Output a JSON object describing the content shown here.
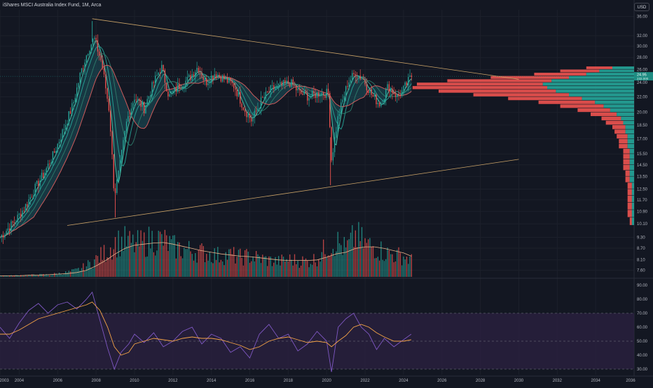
{
  "header": {
    "title": "iShares MSCI Australia Index Fund, 1M, Arca",
    "currency": "USD"
  },
  "colors": {
    "background": "#131722",
    "up": "#26a69a",
    "down": "#ef5350",
    "price_label": "#1e8c82",
    "trendline": "#c9a267",
    "rsi_line": "#7e57c2",
    "rsi_ma": "#f6a447",
    "rsi_band": "#2a2140",
    "volume_ma": "#e6b088",
    "grid": "#1c202b",
    "axis_text": "#b2b5be"
  },
  "price_labels": {
    "last": "24.95",
    "secondary": "232.000"
  },
  "chart_data": [
    {
      "type": "line",
      "title": "",
      "x_axis": {
        "tick_labels": [
          "2003",
          "2004",
          "2006",
          "2008",
          "2010",
          "2012",
          "2014",
          "2016",
          "2018",
          "2020",
          "2022",
          "2024",
          "2026",
          "2028",
          "2030",
          "2032",
          "2034",
          "2036"
        ],
        "tick_values": [
          2003,
          2004,
          2006,
          2008,
          2010,
          2012,
          2014,
          2016,
          2018,
          2020,
          2022,
          2024,
          2026,
          2028,
          2030,
          2032,
          2034,
          2036
        ],
        "range": [
          2003,
          2036
        ]
      },
      "y_axis": {
        "scale": "log",
        "tick_labels": [
          "36.00",
          "32.00",
          "30.00",
          "28.00",
          "26.00",
          "24.00",
          "22.00",
          "20.00",
          "18.50",
          "17.00",
          "15.50",
          "14.50",
          "13.50",
          "12.50",
          "11.70",
          "10.90",
          "10.10",
          "9.30",
          "8.70",
          "8.10",
          "7.60"
        ],
        "tick_values": [
          36,
          32,
          30,
          28,
          26,
          24,
          22,
          20,
          18.5,
          17,
          15.5,
          14.5,
          13.5,
          12.5,
          11.7,
          10.9,
          10.1,
          9.3,
          8.7,
          8.1,
          7.6
        ],
        "range": [
          7.3,
          37.5
        ]
      },
      "close_points": [
        [
          2003.0,
          9.3
        ],
        [
          2003.4,
          9.8
        ],
        [
          2003.8,
          10.3
        ],
        [
          2004.3,
          11.2
        ],
        [
          2004.8,
          12.5
        ],
        [
          2005.3,
          13.8
        ],
        [
          2005.8,
          15.5
        ],
        [
          2006.3,
          18.0
        ],
        [
          2006.8,
          21.0
        ],
        [
          2007.2,
          25.5
        ],
        [
          2007.6,
          29.5
        ],
        [
          2007.9,
          31.5
        ],
        [
          2008.3,
          27.0
        ],
        [
          2008.7,
          20.0
        ],
        [
          2008.95,
          12.0
        ],
        [
          2009.2,
          14.0
        ],
        [
          2009.6,
          19.0
        ],
        [
          2010.0,
          22.0
        ],
        [
          2010.5,
          20.5
        ],
        [
          2011.0,
          24.0
        ],
        [
          2011.4,
          26.5
        ],
        [
          2011.8,
          22.0
        ],
        [
          2012.3,
          23.5
        ],
        [
          2012.8,
          24.5
        ],
        [
          2013.3,
          26.5
        ],
        [
          2013.7,
          24.0
        ],
        [
          2014.2,
          25.5
        ],
        [
          2014.7,
          24.5
        ],
        [
          2015.2,
          23.5
        ],
        [
          2015.7,
          20.5
        ],
        [
          2016.1,
          19.0
        ],
        [
          2016.6,
          21.5
        ],
        [
          2017.1,
          23.0
        ],
        [
          2017.6,
          23.5
        ],
        [
          2018.1,
          24.0
        ],
        [
          2018.6,
          22.5
        ],
        [
          2019.1,
          22.0
        ],
        [
          2019.6,
          22.5
        ],
        [
          2020.1,
          22.5
        ],
        [
          2020.25,
          15.0
        ],
        [
          2020.6,
          19.5
        ],
        [
          2021.1,
          24.0
        ],
        [
          2021.5,
          25.5
        ],
        [
          2021.9,
          24.5
        ],
        [
          2022.4,
          22.0
        ],
        [
          2022.8,
          21.0
        ],
        [
          2023.2,
          23.5
        ],
        [
          2023.7,
          22.0
        ],
        [
          2024.0,
          23.0
        ],
        [
          2024.4,
          24.95
        ]
      ],
      "swing_high": [
        2007.8,
        35.0
      ],
      "swing_low_2009": [
        2009.0,
        10.5
      ],
      "swing_low_2020": [
        2020.2,
        12.8
      ],
      "trendlines": [
        {
          "from": [
            2007.8,
            35.5
          ],
          "to": [
            2030.0,
            24.5
          ]
        },
        {
          "from": [
            2006.5,
            10.0
          ],
          "to": [
            2030.0,
            15.0
          ]
        }
      ]
    },
    {
      "type": "bar",
      "title": "",
      "series_name": "",
      "x": [
        2003.0,
        2003.5,
        2004.0,
        2004.5,
        2005.0,
        2005.5,
        2006.0,
        2006.5,
        2007.0,
        2007.5,
        2008.0,
        2008.5,
        2009.0,
        2009.5,
        2010.0,
        2010.5,
        2011.0,
        2011.5,
        2012.0,
        2012.5,
        2013.0,
        2013.5,
        2014.0,
        2014.5,
        2015.0,
        2015.5,
        2016.0,
        2016.5,
        2017.0,
        2017.5,
        2018.0,
        2018.5,
        2019.0,
        2019.5,
        2020.0,
        2020.5,
        2021.0,
        2021.5,
        2022.0,
        2022.5,
        2023.0,
        2023.5,
        2024.0,
        2024.4
      ],
      "values": [
        2,
        2,
        3,
        3,
        4,
        4,
        6,
        8,
        12,
        20,
        32,
        45,
        62,
        65,
        58,
        62,
        70,
        66,
        55,
        50,
        48,
        45,
        42,
        38,
        40,
        36,
        38,
        34,
        30,
        28,
        32,
        30,
        28,
        34,
        55,
        65,
        50,
        75,
        60,
        55,
        45,
        40,
        38,
        30
      ],
      "moving_average": [
        2,
        2,
        2,
        3,
        3,
        4,
        5,
        6,
        8,
        12,
        20,
        30,
        42,
        52,
        58,
        60,
        62,
        63,
        60,
        56,
        52,
        48,
        45,
        42,
        40,
        38,
        37,
        35,
        33,
        31,
        30,
        30,
        30,
        31,
        36,
        42,
        45,
        52,
        55,
        55,
        52,
        48,
        44,
        38
      ],
      "ylim": [
        0,
        100
      ]
    },
    {
      "type": "line",
      "title": "",
      "series_name": "",
      "y_axis": {
        "tick_labels": [
          "90.00",
          "80.00",
          "70.00",
          "60.00",
          "50.00",
          "40.00",
          "30.00"
        ],
        "tick_values": [
          90,
          80,
          70,
          60,
          50,
          40,
          30
        ],
        "range": [
          26,
          94
        ]
      },
      "bands": {
        "upper": 70,
        "middle": 50,
        "lower": 30
      },
      "x": [
        2003.0,
        2003.5,
        2004.0,
        2004.5,
        2005.0,
        2005.5,
        2006.0,
        2006.5,
        2007.0,
        2007.5,
        2007.8,
        2008.2,
        2008.6,
        2008.95,
        2009.3,
        2009.7,
        2010.0,
        2010.5,
        2011.0,
        2011.5,
        2012.0,
        2012.5,
        2013.0,
        2013.5,
        2014.0,
        2014.5,
        2015.0,
        2015.5,
        2016.0,
        2016.5,
        2017.0,
        2017.5,
        2018.0,
        2018.5,
        2019.0,
        2019.5,
        2020.0,
        2020.25,
        2020.6,
        2021.0,
        2021.4,
        2021.8,
        2022.2,
        2022.6,
        2023.0,
        2023.5,
        2024.0,
        2024.4
      ],
      "rsi": [
        60,
        52,
        63,
        72,
        77,
        70,
        76,
        78,
        73,
        80,
        85,
        65,
        45,
        30,
        42,
        48,
        55,
        49,
        56,
        46,
        50,
        57,
        60,
        48,
        55,
        52,
        42,
        46,
        38,
        55,
        62,
        52,
        55,
        43,
        48,
        57,
        50,
        28,
        60,
        66,
        70,
        60,
        55,
        44,
        52,
        46,
        51,
        55
      ],
      "rsi_ma": [
        55,
        55,
        58,
        62,
        66,
        68,
        70,
        72,
        74,
        76,
        78,
        72,
        60,
        46,
        40,
        42,
        48,
        50,
        52,
        51,
        50,
        52,
        53,
        52,
        52,
        51,
        49,
        47,
        44,
        46,
        50,
        52,
        53,
        51,
        49,
        50,
        49,
        46,
        50,
        54,
        60,
        62,
        60,
        56,
        53,
        50,
        50,
        51
      ]
    }
  ],
  "volume_profile": {
    "price_levels": [
      26.5,
      26.0,
      25.5,
      25.0,
      24.5,
      24.0,
      23.5,
      23.0,
      22.5,
      22.0,
      21.5,
      21.0,
      20.5,
      20.0,
      19.5,
      19.0,
      18.5,
      18.0,
      17.5,
      17.0,
      16.5,
      16.0,
      15.5,
      15.0,
      14.5,
      14.0,
      13.5,
      13.0,
      12.5,
      12.0,
      11.5,
      11.0,
      10.5
    ],
    "up_volume": [
      0.1,
      0.16,
      0.22,
      0.3,
      0.38,
      0.42,
      0.4,
      0.36,
      0.3,
      0.24,
      0.18,
      0.14,
      0.11,
      0.08,
      0.06,
      0.05,
      0.04,
      0.04,
      0.03,
      0.03,
      0.03,
      0.02,
      0.02,
      0.02,
      0.02,
      0.02,
      0.02,
      0.01,
      0.01,
      0.01,
      0.01,
      0.01,
      0.01
    ],
    "down_volume": [
      0.12,
      0.18,
      0.24,
      0.36,
      0.48,
      0.58,
      0.62,
      0.54,
      0.44,
      0.34,
      0.26,
      0.2,
      0.15,
      0.12,
      0.09,
      0.08,
      0.06,
      0.05,
      0.05,
      0.04,
      0.04,
      0.03,
      0.03,
      0.03,
      0.03,
      0.02,
      0.02,
      0.02,
      0.02,
      0.02,
      0.02,
      0.02,
      0.01
    ]
  }
}
